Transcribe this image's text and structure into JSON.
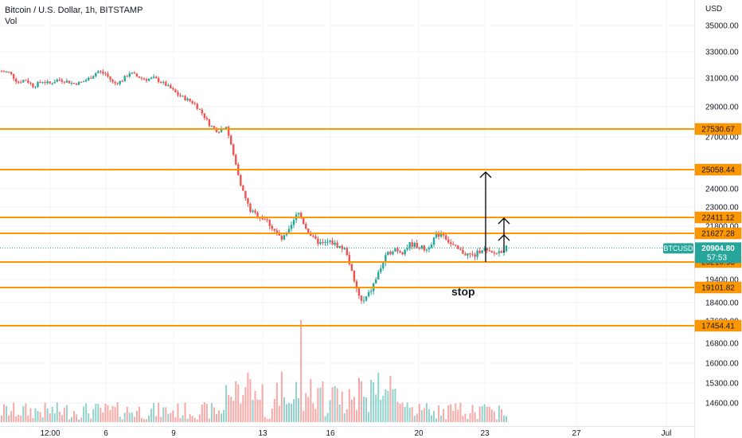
{
  "header": {
    "symbol_line": "Bitcoin / U.S. Dollar, 1h, BITSTAMP",
    "volume_label": "Vol"
  },
  "chart_data": {
    "type": "candlestick",
    "currency_label": "USD",
    "y_ticks": [
      "35000.00",
      "33000.00",
      "31000.00",
      "29000.00",
      "27000.00",
      "24000.00",
      "23000.00",
      "21800.00",
      "19400.00",
      "18400.00",
      "17600.00",
      "16800.00",
      "16000.00",
      "15300.00",
      "14600.00"
    ],
    "x_ticks": [
      "12:00",
      "6",
      "9",
      "13",
      "16",
      "20",
      "23",
      "27",
      "Jul"
    ],
    "levels": [
      {
        "value": 27530.67,
        "label": "27530.67"
      },
      {
        "value": 25058.44,
        "label": "25058.44"
      },
      {
        "value": 22411.12,
        "label": "22411.12"
      },
      {
        "value": 21627.28,
        "label": "21627.28"
      },
      {
        "value": 20210.93,
        "label": "20210.93"
      },
      {
        "value": 19101.82,
        "label": "19101.82"
      },
      {
        "value": 17454.41,
        "label": "17454.41"
      }
    ],
    "current_price": {
      "symbol": "BTCUSD",
      "value": "20904.80",
      "countdown": "57:53"
    },
    "annotations": [
      {
        "text": "stop"
      }
    ],
    "price_path": [
      [
        0,
        31700
      ],
      [
        2,
        31600
      ],
      [
        4,
        30900
      ],
      [
        6,
        31100
      ],
      [
        8,
        30600
      ],
      [
        10,
        31000
      ],
      [
        12,
        30800
      ],
      [
        14,
        31100
      ],
      [
        16,
        31000
      ],
      [
        18,
        30800
      ],
      [
        20,
        30900
      ],
      [
        22,
        31200
      ],
      [
        24,
        31700
      ],
      [
        26,
        31500
      ],
      [
        28,
        30800
      ],
      [
        30,
        31000
      ],
      [
        32,
        31600
      ],
      [
        34,
        31300
      ],
      [
        36,
        31100
      ],
      [
        38,
        31200
      ],
      [
        40,
        30900
      ],
      [
        42,
        30500
      ],
      [
        44,
        30000
      ],
      [
        46,
        29700
      ],
      [
        48,
        29400
      ],
      [
        50,
        28700
      ],
      [
        52,
        27800
      ],
      [
        54,
        27400
      ],
      [
        56,
        27800
      ],
      [
        58,
        25800
      ],
      [
        60,
        24000
      ],
      [
        62,
        22800
      ],
      [
        64,
        22500
      ],
      [
        66,
        22300
      ],
      [
        68,
        21800
      ],
      [
        70,
        21300
      ],
      [
        72,
        21800
      ],
      [
        74,
        22700
      ],
      [
        76,
        21900
      ],
      [
        78,
        21300
      ],
      [
        80,
        21100
      ],
      [
        82,
        21200
      ],
      [
        84,
        21000
      ],
      [
        86,
        20800
      ],
      [
        88,
        19300
      ],
      [
        90,
        18400
      ],
      [
        92,
        18900
      ],
      [
        94,
        19700
      ],
      [
        96,
        20500
      ],
      [
        98,
        20900
      ],
      [
        100,
        20700
      ],
      [
        102,
        21100
      ],
      [
        104,
        21000
      ],
      [
        106,
        20800
      ],
      [
        108,
        21400
      ],
      [
        110,
        21700
      ],
      [
        112,
        21100
      ],
      [
        114,
        20800
      ],
      [
        116,
        20600
      ],
      [
        118,
        20500
      ],
      [
        120,
        20900
      ],
      [
        122,
        20600
      ],
      [
        124,
        20700
      ],
      [
        126,
        20904.8
      ]
    ],
    "volume_spike_index": 75
  }
}
